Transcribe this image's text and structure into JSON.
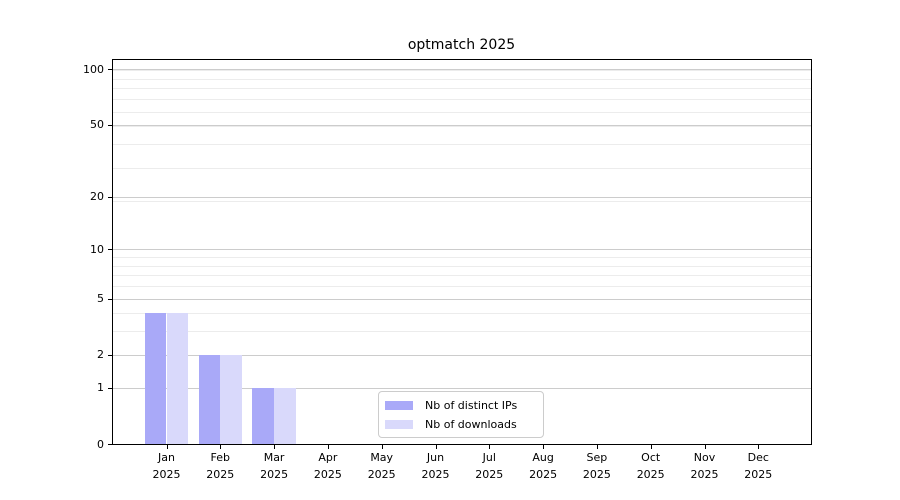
{
  "chart_data": {
    "type": "bar",
    "title": "optmatch 2025",
    "categories": [
      "Jan",
      "Feb",
      "Mar",
      "Apr",
      "May",
      "Jun",
      "Jul",
      "Aug",
      "Sep",
      "Oct",
      "Nov",
      "Dec"
    ],
    "x_year_label": "2025",
    "series": [
      {
        "name": "Nb of distinct IPs",
        "color": "#a9a9f8",
        "values": [
          4,
          2,
          1,
          0,
          0,
          0,
          0,
          0,
          0,
          0,
          0,
          0
        ]
      },
      {
        "name": "Nb of downloads",
        "color": "#d9d9fb",
        "values": [
          4,
          2,
          1,
          0,
          0,
          0,
          0,
          0,
          0,
          0,
          0,
          0
        ]
      }
    ],
    "yscale": "log10(1+v)",
    "ylim": [
      0,
      112
    ],
    "y_major_ticks": [
      0,
      1,
      2,
      5,
      10,
      20,
      50,
      100
    ],
    "y_minor_gridlines_at_1_plus_v": [
      4,
      5,
      7,
      8,
      9,
      10,
      20,
      30,
      40,
      50,
      60,
      70,
      80,
      90,
      100
    ],
    "grid": "horizontal",
    "legend_position": "lower-center"
  },
  "legend": {
    "entries": [
      {
        "label": "Nb of distinct IPs"
      },
      {
        "label": "Nb of downloads"
      }
    ]
  },
  "colors": {
    "background": "#ffffff",
    "spine": "#000000",
    "grid_major": "#cccccc",
    "grid_minor": "#ececec",
    "bar_distinct_ips": "#a9a9f8",
    "bar_downloads": "#d9d9fb"
  }
}
